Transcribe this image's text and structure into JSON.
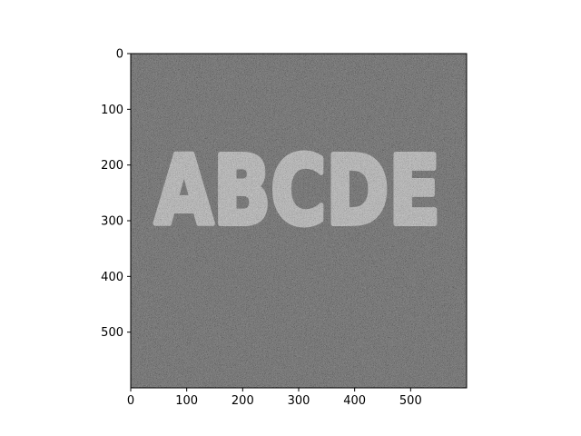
{
  "chart_data": {
    "type": "heatmap",
    "title": "",
    "xlabel": "",
    "ylabel": "",
    "colormap": "gray",
    "xlim": [
      0,
      600
    ],
    "ylim": [
      600,
      0
    ],
    "image_shape": [
      600,
      600
    ],
    "xticks": [
      0,
      100,
      200,
      300,
      400,
      500
    ],
    "yticks": [
      0,
      100,
      200,
      300,
      400,
      500
    ],
    "xtick_labels": [
      "0",
      "100",
      "200",
      "300",
      "400",
      "500"
    ],
    "ytick_labels": [
      "0",
      "100",
      "200",
      "300",
      "400",
      "500"
    ],
    "image_text": "ABCDE",
    "background_gray_mean": 0.3,
    "text_gray_mean": 0.8,
    "noise": "salt-and-pepper"
  },
  "colors": {
    "background": "#4a4a4a",
    "text": "#d0d0d0",
    "axes": "#000000"
  }
}
